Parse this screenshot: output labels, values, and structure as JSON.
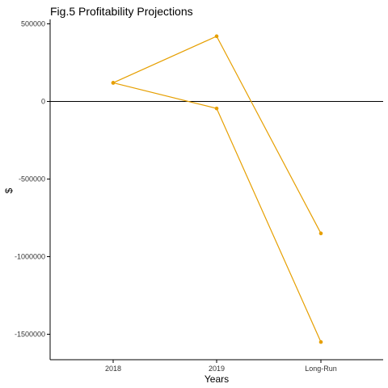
{
  "chart_data": {
    "type": "line",
    "title": "Fig.5 Profitability Projections",
    "xlabel": "Years",
    "ylabel": "$",
    "categories": [
      "2018",
      "2019",
      "Long-Run"
    ],
    "yticks": [
      500000,
      0,
      -500000,
      -1000000,
      -1500000
    ],
    "ytick_labels": [
      "500000",
      "0",
      "-500000",
      "-1000000",
      "-1500000"
    ],
    "ylim": [
      -1650000,
      530000
    ],
    "grid": false,
    "reference_line_y": 0,
    "series": [
      {
        "values": [
          120000,
          420000,
          -850000
        ]
      },
      {
        "values": [
          120000,
          -45000,
          -1550000
        ]
      }
    ],
    "colors": {
      "series": "#E69F00",
      "axis": "#000000",
      "reference_line": "#000000"
    }
  }
}
